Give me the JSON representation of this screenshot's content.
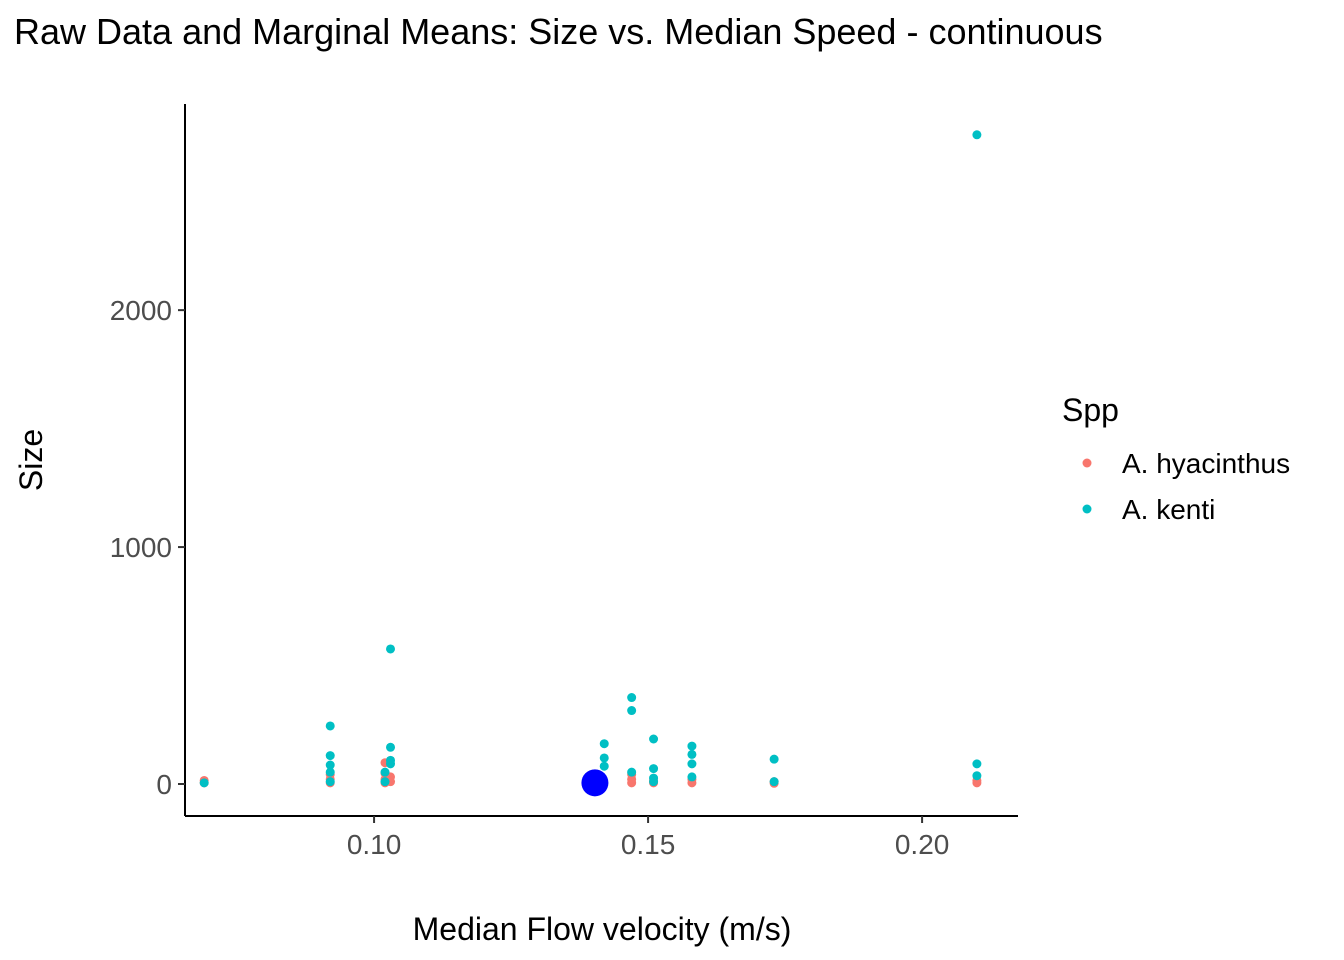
{
  "chart_data": {
    "type": "scatter",
    "title": "Raw Data and Marginal Means: Size vs. Median Speed - continuous",
    "xlabel": "Median Flow velocity (m/s)",
    "ylabel": "Size",
    "xlim": [
      0.0655,
      0.2175
    ],
    "ylim": [
      -135,
      2870
    ],
    "x_ticks": [
      0.1,
      0.15,
      0.2
    ],
    "x_tick_labels": [
      "0.10",
      "0.15",
      "0.20"
    ],
    "y_ticks": [
      0,
      1000,
      2000
    ],
    "y_tick_labels": [
      "0",
      "1000",
      "2000"
    ],
    "grid": false,
    "legend": {
      "title": "Spp",
      "position": "right",
      "entries": [
        {
          "name": "A. hyacinthus",
          "color": "#F8766D"
        },
        {
          "name": "A. kenti",
          "color": "#00BFC4"
        }
      ]
    },
    "series": [
      {
        "name": "A. hyacinthus",
        "color": "#F8766D",
        "points": [
          {
            "x": 0.069,
            "y": 5
          },
          {
            "x": 0.069,
            "y": 15
          },
          {
            "x": 0.092,
            "y": 5
          },
          {
            "x": 0.092,
            "y": 20
          },
          {
            "x": 0.092,
            "y": 40
          },
          {
            "x": 0.102,
            "y": 5
          },
          {
            "x": 0.102,
            "y": 20
          },
          {
            "x": 0.102,
            "y": 45
          },
          {
            "x": 0.102,
            "y": 90
          },
          {
            "x": 0.103,
            "y": 10
          },
          {
            "x": 0.103,
            "y": 30
          },
          {
            "x": 0.147,
            "y": 5
          },
          {
            "x": 0.147,
            "y": 20
          },
          {
            "x": 0.147,
            "y": 40
          },
          {
            "x": 0.151,
            "y": 5
          },
          {
            "x": 0.151,
            "y": 15
          },
          {
            "x": 0.158,
            "y": 5
          },
          {
            "x": 0.158,
            "y": 20
          },
          {
            "x": 0.173,
            "y": 3
          },
          {
            "x": 0.173,
            "y": 10
          },
          {
            "x": 0.21,
            "y": 5
          },
          {
            "x": 0.21,
            "y": 15
          }
        ]
      },
      {
        "name": "A. kenti",
        "color": "#00BFC4",
        "points": [
          {
            "x": 0.069,
            "y": 5
          },
          {
            "x": 0.092,
            "y": 10
          },
          {
            "x": 0.092,
            "y": 50
          },
          {
            "x": 0.092,
            "y": 80
          },
          {
            "x": 0.092,
            "y": 120
          },
          {
            "x": 0.092,
            "y": 245
          },
          {
            "x": 0.102,
            "y": 10
          },
          {
            "x": 0.102,
            "y": 50
          },
          {
            "x": 0.103,
            "y": 85
          },
          {
            "x": 0.103,
            "y": 100
          },
          {
            "x": 0.103,
            "y": 155
          },
          {
            "x": 0.103,
            "y": 570
          },
          {
            "x": 0.142,
            "y": 75
          },
          {
            "x": 0.142,
            "y": 110
          },
          {
            "x": 0.142,
            "y": 170
          },
          {
            "x": 0.147,
            "y": 50
          },
          {
            "x": 0.147,
            "y": 310
          },
          {
            "x": 0.147,
            "y": 365
          },
          {
            "x": 0.151,
            "y": 10
          },
          {
            "x": 0.151,
            "y": 25
          },
          {
            "x": 0.151,
            "y": 65
          },
          {
            "x": 0.151,
            "y": 190
          },
          {
            "x": 0.158,
            "y": 30
          },
          {
            "x": 0.158,
            "y": 85
          },
          {
            "x": 0.158,
            "y": 125
          },
          {
            "x": 0.158,
            "y": 160
          },
          {
            "x": 0.173,
            "y": 10
          },
          {
            "x": 0.173,
            "y": 105
          },
          {
            "x": 0.21,
            "y": 35
          },
          {
            "x": 0.21,
            "y": 85
          },
          {
            "x": 0.21,
            "y": 2740
          }
        ]
      }
    ],
    "marginal_mean": {
      "x": 0.1403,
      "y": 5,
      "color": "#0000FF"
    }
  }
}
